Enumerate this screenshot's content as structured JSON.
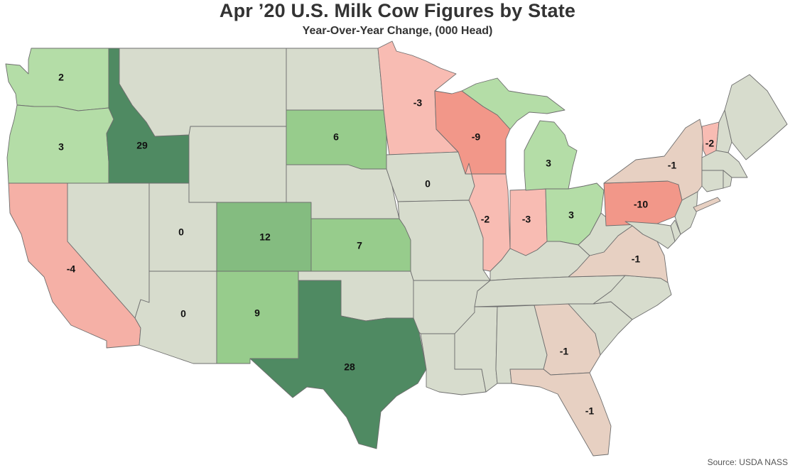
{
  "title": "Apr ’20 U.S. Milk Cow Figures by State",
  "subtitle": "Year-Over-Year Change, (000 Head)",
  "source": "Source: USDA NASS",
  "colors": {
    "neutral": "#d7dccd",
    "dark_green": "#4f8a62",
    "mid_green": "#84bc80",
    "green": "#97cc8c",
    "light_green": "#b4dda7",
    "tan": "#e7d0c2",
    "light_red": "#f8bcb3",
    "red": "#f5b0a6",
    "dark_red": "#f29789",
    "border": "#6e6e6e"
  },
  "states": [
    {
      "id": "WA",
      "label": "2",
      "color": "light_green"
    },
    {
      "id": "OR",
      "label": "3",
      "color": "light_green"
    },
    {
      "id": "CA",
      "label": "-4",
      "color": "red"
    },
    {
      "id": "ID",
      "label": "29",
      "color": "dark_green"
    },
    {
      "id": "NV",
      "label": "",
      "color": "neutral"
    },
    {
      "id": "UT",
      "label": "0",
      "color": "neutral"
    },
    {
      "id": "AZ",
      "label": "0",
      "color": "neutral"
    },
    {
      "id": "MT",
      "label": "",
      "color": "neutral"
    },
    {
      "id": "WY",
      "label": "",
      "color": "neutral"
    },
    {
      "id": "CO",
      "label": "12",
      "color": "mid_green"
    },
    {
      "id": "NM",
      "label": "9",
      "color": "green"
    },
    {
      "id": "ND",
      "label": "",
      "color": "neutral"
    },
    {
      "id": "SD",
      "label": "6",
      "color": "green"
    },
    {
      "id": "NE",
      "label": "",
      "color": "neutral"
    },
    {
      "id": "KS",
      "label": "7",
      "color": "green"
    },
    {
      "id": "OK",
      "label": "",
      "color": "neutral"
    },
    {
      "id": "TX",
      "label": "28",
      "color": "dark_green"
    },
    {
      "id": "MN",
      "label": "-3",
      "color": "light_red"
    },
    {
      "id": "IA",
      "label": "0",
      "color": "neutral"
    },
    {
      "id": "MO",
      "label": "",
      "color": "neutral"
    },
    {
      "id": "AR",
      "label": "",
      "color": "neutral"
    },
    {
      "id": "LA",
      "label": "",
      "color": "neutral"
    },
    {
      "id": "WI",
      "label": "-9",
      "color": "dark_red"
    },
    {
      "id": "IL",
      "label": "-2",
      "color": "light_red"
    },
    {
      "id": "IN",
      "label": "-3",
      "color": "light_red"
    },
    {
      "id": "MI",
      "label": "3",
      "color": "light_green"
    },
    {
      "id": "MI-UP",
      "label": "",
      "color": "light_green"
    },
    {
      "id": "OH",
      "label": "3",
      "color": "light_green"
    },
    {
      "id": "KY",
      "label": "",
      "color": "neutral"
    },
    {
      "id": "TN",
      "label": "",
      "color": "neutral"
    },
    {
      "id": "MS",
      "label": "",
      "color": "neutral"
    },
    {
      "id": "AL",
      "label": "",
      "color": "neutral"
    },
    {
      "id": "GA",
      "label": "-1",
      "color": "tan"
    },
    {
      "id": "FL",
      "label": "-1",
      "color": "tan"
    },
    {
      "id": "SC",
      "label": "",
      "color": "neutral"
    },
    {
      "id": "NC",
      "label": "",
      "color": "neutral"
    },
    {
      "id": "VA",
      "label": "-1",
      "color": "tan"
    },
    {
      "id": "WV",
      "label": "",
      "color": "neutral"
    },
    {
      "id": "PA",
      "label": "-10",
      "color": "dark_red"
    },
    {
      "id": "NY",
      "label": "-1",
      "color": "tan"
    },
    {
      "id": "VT",
      "label": "-2",
      "color": "light_red"
    },
    {
      "id": "NH",
      "label": "",
      "color": "neutral"
    },
    {
      "id": "ME",
      "label": "",
      "color": "neutral"
    },
    {
      "id": "MA",
      "label": "",
      "color": "neutral"
    },
    {
      "id": "CT",
      "label": "",
      "color": "neutral"
    },
    {
      "id": "RI",
      "label": "",
      "color": "neutral"
    },
    {
      "id": "NJ",
      "label": "",
      "color": "neutral"
    },
    {
      "id": "DE",
      "label": "",
      "color": "neutral"
    },
    {
      "id": "MD",
      "label": "",
      "color": "neutral"
    }
  ]
}
